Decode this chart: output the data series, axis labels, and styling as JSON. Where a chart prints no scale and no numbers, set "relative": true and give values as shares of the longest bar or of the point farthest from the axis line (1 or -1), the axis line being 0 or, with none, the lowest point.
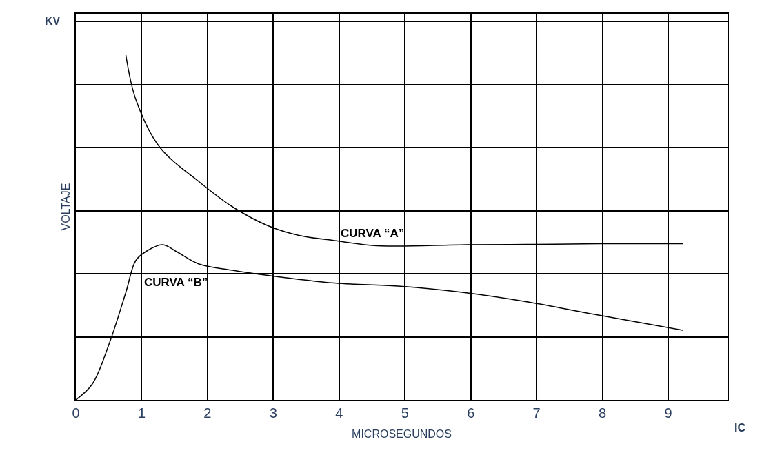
{
  "chart_data": {
    "type": "line",
    "xlabel": "MICROSEGUNDOS",
    "ylabel": "VOLTAJE",
    "relative": true,
    "annotations": [
      "KV",
      "IC"
    ],
    "xlim": [
      0,
      9.9
    ],
    "xticks": [
      0,
      1,
      2,
      3,
      4,
      5,
      6,
      7,
      8,
      9
    ],
    "grid": true,
    "legend": false,
    "marker": "none",
    "line_style": "solid",
    "series": [
      {
        "name": "CURVA “A”",
        "color": "#000000",
        "x": [
          0.76,
          0.91,
          1.27,
          1.87,
          2.38,
          2.92,
          3.39,
          3.93,
          4.5,
          4.89,
          5.93,
          6.94,
          7.95,
          9.22
        ],
        "values": [
          1,
          0.872,
          0.734,
          0.633,
          0.56,
          0.505,
          0.477,
          0.462,
          0.448,
          0.446,
          0.45,
          0.451,
          0.453,
          0.453
        ]
      },
      {
        "name": "CURVA “B”",
        "color": "#000000",
        "x": [
          0,
          0.25,
          0.51,
          0.76,
          0.91,
          1.07,
          1.32,
          1.52,
          1.87,
          2.38,
          2.92,
          3.93,
          4.89,
          5.87,
          6.87,
          7.88,
          9.22
        ],
        "values": [
          0,
          0.046,
          0.165,
          0.312,
          0.404,
          0.431,
          0.45,
          0.431,
          0.394,
          0.376,
          0.361,
          0.339,
          0.33,
          0.312,
          0.284,
          0.248,
          0.202
        ]
      }
    ]
  }
}
